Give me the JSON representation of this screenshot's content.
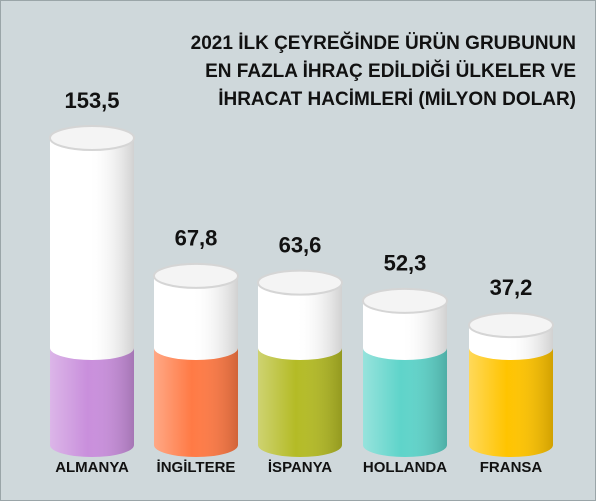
{
  "chart_data": {
    "type": "cylinder-bar",
    "title": [
      "2021 İLK ÇEYREĞİNDE ÜRÜN GRUBUNUN",
      "EN FAZLA İHRAÇ EDİLDİĞİ ÜLKELER VE",
      "İHRACAT HACİMLERİ (MİLYON DOLAR)"
    ],
    "categories": [
      "ALMANYA",
      "İNGİLTERE",
      "İSPANYA",
      "HOLLANDA",
      "FRANSA"
    ],
    "values": [
      153.5,
      67.8,
      63.6,
      52.3,
      37.2
    ],
    "value_labels": [
      "153,5",
      "67,8",
      "63,6",
      "52,3",
      "37,2"
    ],
    "colors": [
      "#c98fdc",
      "#ff7a45",
      "#b4bb26",
      "#5fd4ca",
      "#ffc400"
    ]
  }
}
